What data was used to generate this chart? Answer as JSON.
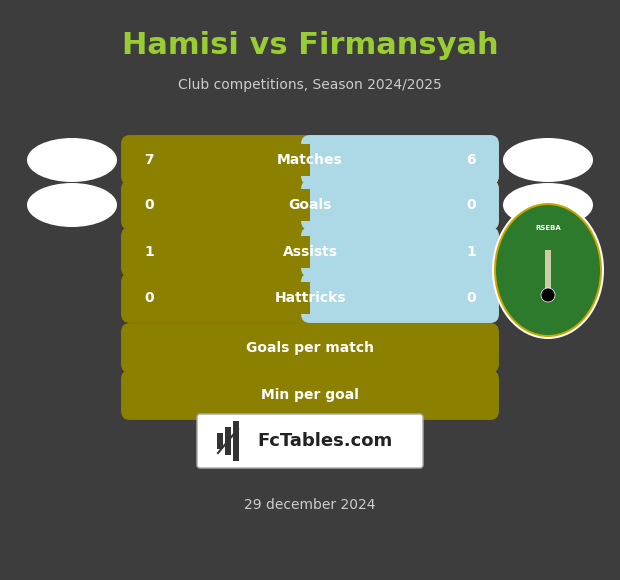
{
  "title": "Hamisi vs Firmansyah",
  "subtitle": "Club competitions, Season 2024/2025",
  "date": "29 december 2024",
  "background_color": "#3d3d3d",
  "title_color": "#9acd32",
  "subtitle_color": "#cccccc",
  "date_color": "#cccccc",
  "rows": [
    {
      "label": "Matches",
      "left_val": "7",
      "right_val": "6",
      "left_color": "#8b8000",
      "right_color": "#add8e6",
      "split": 0.5
    },
    {
      "label": "Goals",
      "left_val": "0",
      "right_val": "0",
      "left_color": "#8b8000",
      "right_color": "#add8e6",
      "split": 0.5
    },
    {
      "label": "Assists",
      "left_val": "1",
      "right_val": "1",
      "left_color": "#8b8000",
      "right_color": "#add8e6",
      "split": 0.5
    },
    {
      "label": "Hattricks",
      "left_val": "0",
      "right_val": "0",
      "left_color": "#8b8000",
      "right_color": "#add8e6",
      "split": 0.5
    },
    {
      "label": "Goals per match",
      "left_val": "",
      "right_val": "",
      "left_color": "#8b8000",
      "right_color": "#8b8000",
      "split": 1.0
    },
    {
      "label": "Min per goal",
      "left_val": "",
      "right_val": "",
      "left_color": "#8b8000",
      "right_color": "#8b8000",
      "split": 1.0
    }
  ],
  "bar_text_fontsize": 10,
  "val_fontsize": 10,
  "ellipse_color": "#ffffff",
  "logo_outer_color": "#ffffff",
  "logo_inner_color": "#2d7a2d",
  "logo_band_color": "#c8a800",
  "fctables_bg": "#ffffff",
  "fctables_text": "#222222",
  "fctables_border": "#aaaaaa"
}
